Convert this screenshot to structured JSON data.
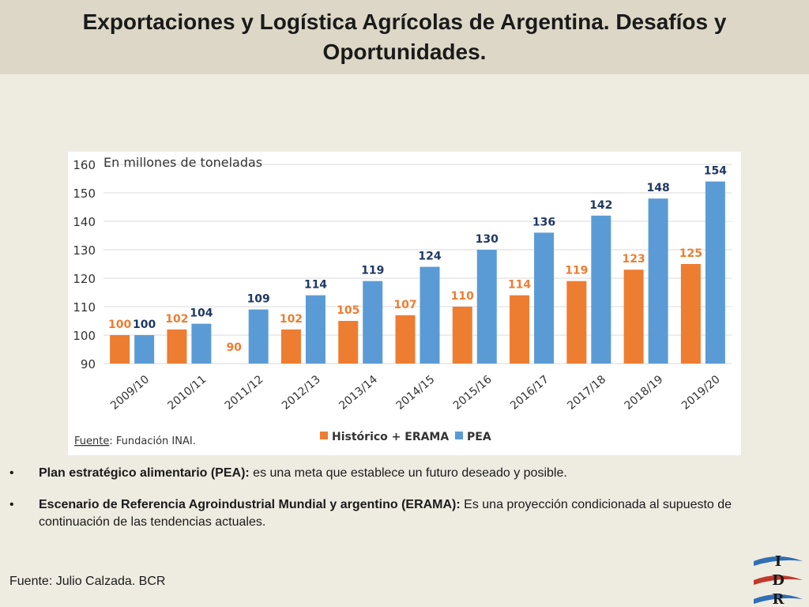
{
  "slide": {
    "title": "Exportaciones y Logística Agrícolas de Argentina. Desafíos y Oportunidades.",
    "bullets": [
      {
        "label": "Plan estratégico alimentario (PEA):",
        "text": " es una meta que establece un futuro deseado y posible."
      },
      {
        "label": "Escenario de Referencia Agroindustrial Mundial y argentino (ERAMA):",
        "text": " Es una proyección condicionada al supuesto de continuación de las tendencias actuales."
      }
    ],
    "bullet_char": "•",
    "source": "Fuente: Julio Calzada. BCR",
    "logo_letters": [
      "I",
      "D",
      "R"
    ]
  },
  "chart_data": {
    "type": "bar",
    "unit_label": "En millones de toneladas",
    "categories": [
      "2009/10",
      "2010/11",
      "2011/12",
      "2012/13",
      "2013/14",
      "2014/15",
      "2015/16",
      "2016/17",
      "2017/18",
      "2018/19",
      "2019/20"
    ],
    "series": [
      {
        "name": "Histórico + ERAMA",
        "color": "#ed7d31",
        "values": [
          100,
          102,
          90,
          102,
          105,
          107,
          110,
          114,
          119,
          123,
          125
        ]
      },
      {
        "name": "PEA",
        "color": "#5b9bd5",
        "values": [
          100,
          104,
          109,
          114,
          119,
          124,
          130,
          136,
          142,
          148,
          154
        ]
      }
    ],
    "y_ticks": [
      90,
      100,
      110,
      120,
      130,
      140,
      150,
      160
    ],
    "ylim": [
      90,
      160
    ],
    "grid": true,
    "legend_position": "bottom-right",
    "source_label": "Fuente",
    "source_text": ": Fundación INAI."
  }
}
